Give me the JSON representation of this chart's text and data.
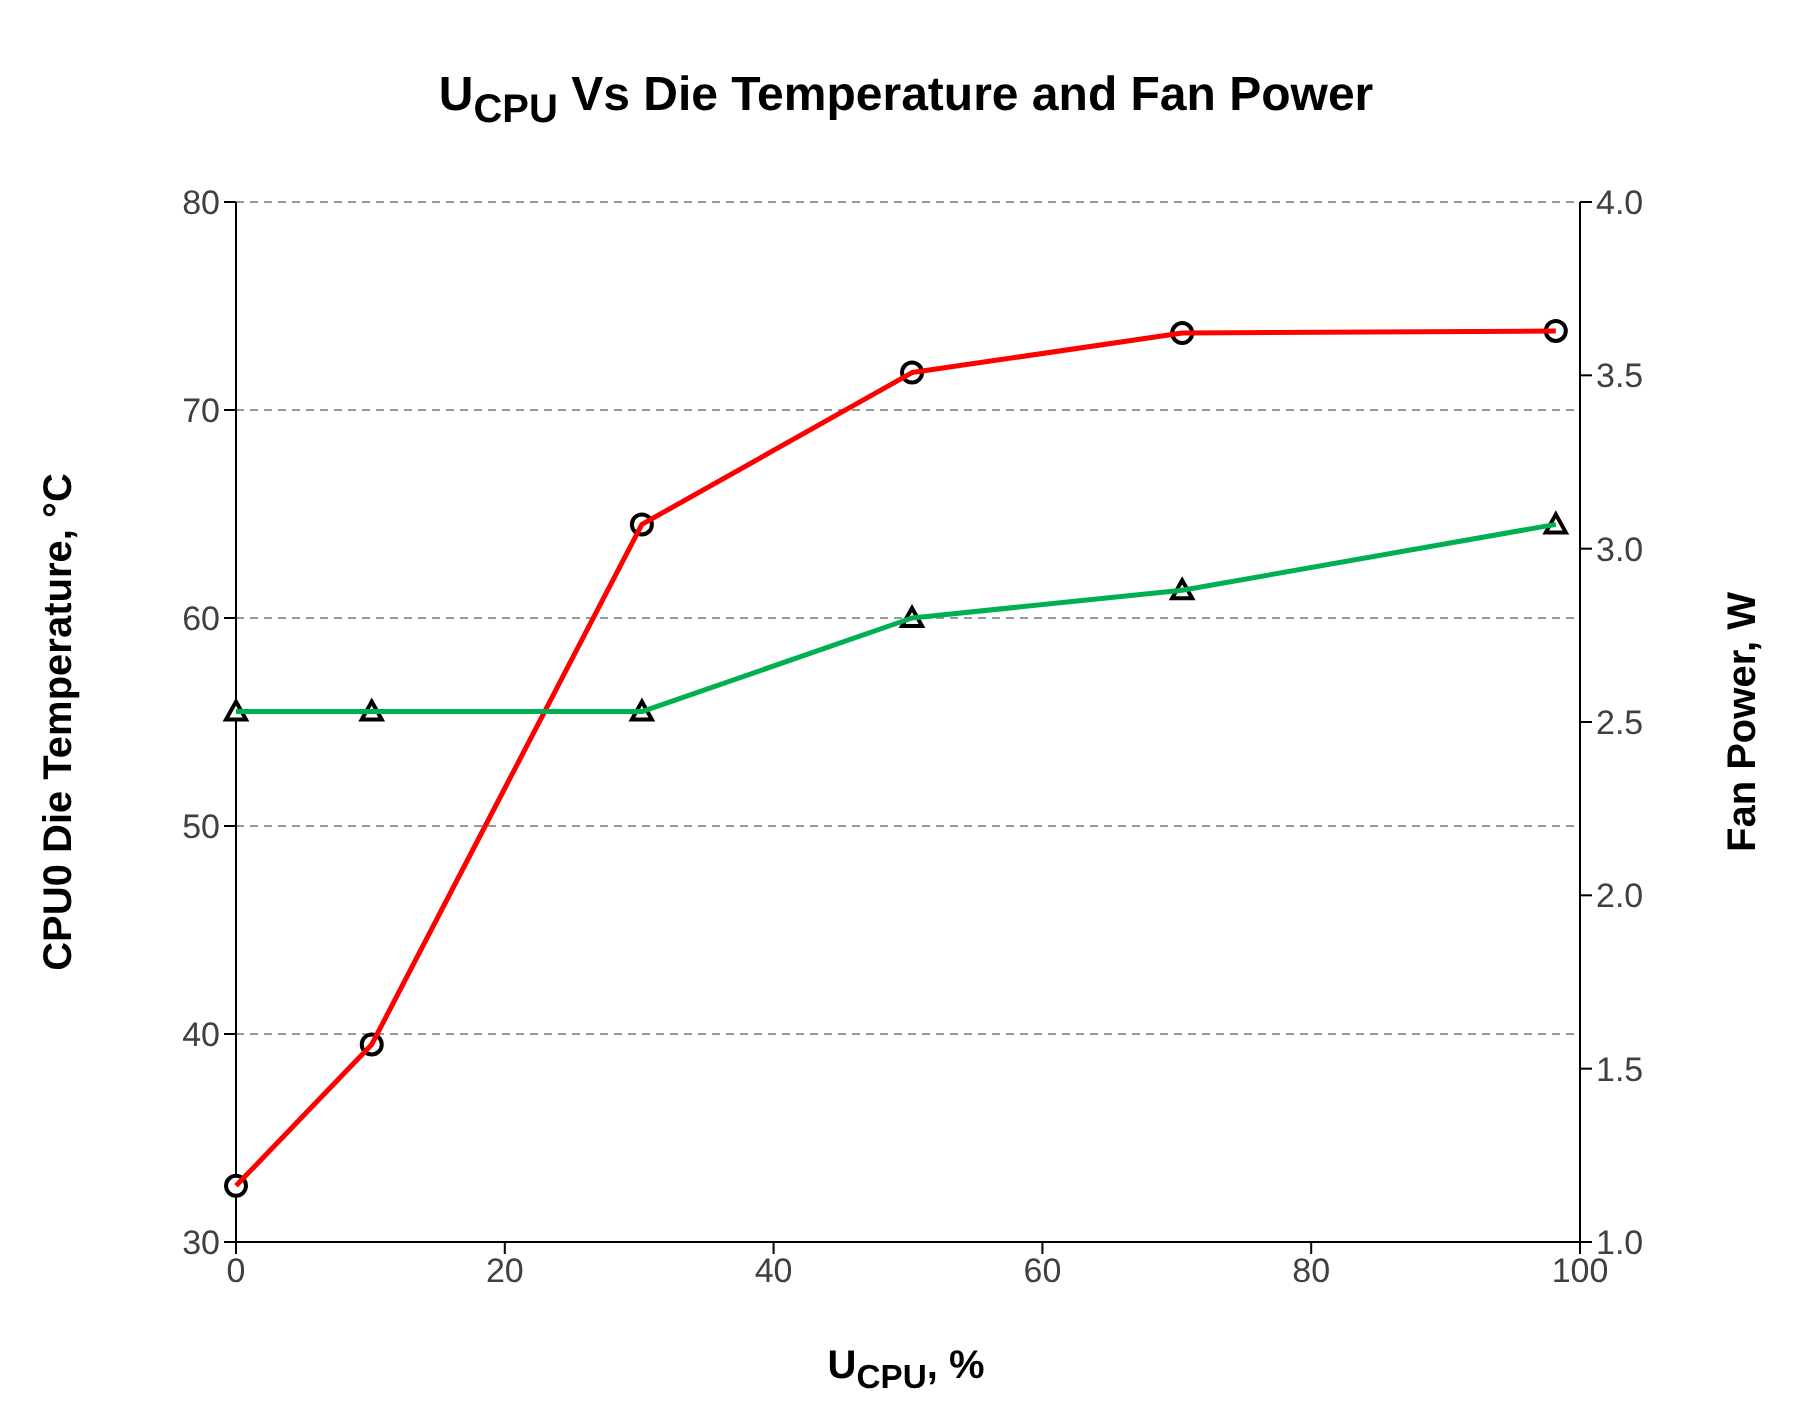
{
  "chart_data": {
    "type": "line",
    "title": "U$_{CPU}$ Vs Die Temperature and Fan Power",
    "xlabel": "U$_{CPU}$, %",
    "ylabel": "CPU0 Die Temperature, °C",
    "y2label": "Fan Power, W",
    "x": [
      0,
      10.1,
      30.2,
      50.3,
      70.4,
      98.2
    ],
    "series": [
      {
        "color": "#ff0000",
        "values": [
          32.7,
          39.5,
          64.5,
          71.8,
          73.7,
          73.8
        ],
        "marker": "circle"
      },
      {
        "color": "#00b050",
        "values": [
          2.53,
          2.53,
          2.53,
          2.8,
          2.88,
          3.07
        ],
        "marker": "triangle",
        "axis": "y2"
      }
    ],
    "xlim": [
      0,
      100
    ],
    "xticks": [
      0,
      20,
      40,
      60,
      80,
      100
    ],
    "ylim": [
      30,
      80
    ],
    "yticks": [
      30,
      40,
      50,
      60,
      70,
      80
    ],
    "y2lim": [
      1,
      4
    ],
    "y2ticks": [
      {
        "value": 1,
        "label": "1.0"
      },
      1.5,
      {
        "value": 2,
        "label": "2.0"
      },
      2.5,
      {
        "value": 3,
        "label": "3.0"
      },
      3.5,
      {
        "value": 4,
        "label": "4.0"
      }
    ],
    "grid": "y",
    "legend": false
  }
}
